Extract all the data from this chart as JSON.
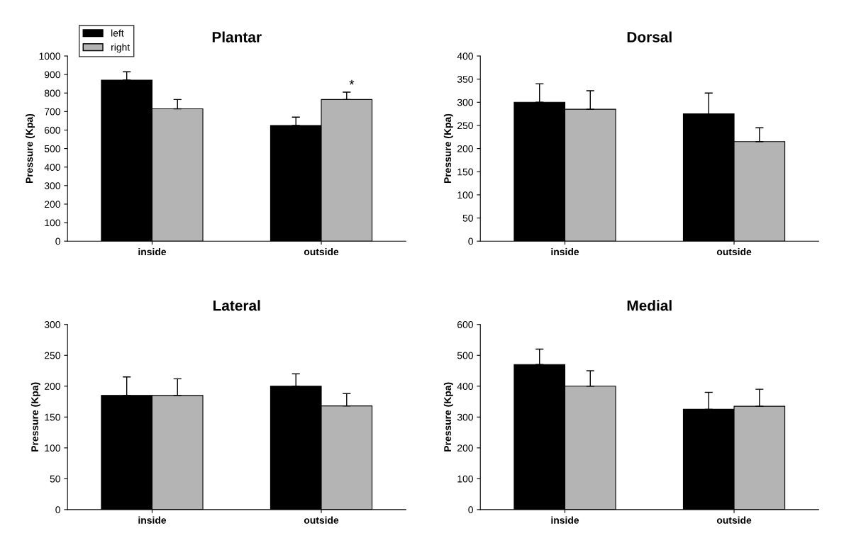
{
  "chart_data": [
    {
      "type": "bar",
      "title": "Plantar",
      "ylabel": "Pressure (Kpa)",
      "categories": [
        "inside",
        "outside"
      ],
      "ylim": [
        0,
        1000
      ],
      "yticks": [
        0,
        100,
        200,
        300,
        400,
        500,
        600,
        700,
        800,
        900,
        1000
      ],
      "grid": false,
      "legend": "top left",
      "series": [
        {
          "name": "left",
          "color": "#000000",
          "values": [
            870,
            625
          ],
          "errors": [
            45,
            45
          ]
        },
        {
          "name": "right",
          "color": "#b4b4b4",
          "values": [
            715,
            765
          ],
          "errors": [
            50,
            40
          ]
        }
      ],
      "annotations": [
        "*"
      ]
    },
    {
      "type": "bar",
      "title": "Dorsal",
      "ylabel": "Pressure (Kpa)",
      "categories": [
        "inside",
        "outside"
      ],
      "ylim": [
        0,
        400
      ],
      "yticks": [
        0,
        50,
        100,
        150,
        200,
        250,
        300,
        350,
        400
      ],
      "grid": false,
      "series": [
        {
          "color": "#000000",
          "values": [
            300,
            275
          ],
          "errors": [
            40,
            45
          ]
        },
        {
          "color": "#b4b4b4",
          "values": [
            285,
            215
          ],
          "errors": [
            40,
            30
          ]
        }
      ]
    },
    {
      "type": "bar",
      "title": "Lateral",
      "ylabel": "Pressure (Kpa)",
      "categories": [
        "inside",
        "outside"
      ],
      "ylim": [
        0,
        300
      ],
      "yticks": [
        0,
        50,
        100,
        150,
        200,
        250,
        300
      ],
      "grid": false,
      "series": [
        {
          "color": "#000000",
          "values": [
            185,
            200
          ],
          "errors": [
            30,
            20
          ]
        },
        {
          "color": "#b4b4b4",
          "values": [
            185,
            168
          ],
          "errors": [
            27,
            20
          ]
        }
      ]
    },
    {
      "type": "bar",
      "title": "Medial",
      "ylabel": "Pressure (Kpa)",
      "categories": [
        "inside",
        "outside"
      ],
      "ylim": [
        0,
        600
      ],
      "yticks": [
        0,
        100,
        200,
        300,
        400,
        500,
        600
      ],
      "grid": false,
      "series": [
        {
          "color": "#000000",
          "values": [
            470,
            325
          ],
          "errors": [
            50,
            55
          ]
        },
        {
          "color": "#b4b4b4",
          "values": [
            400,
            335
          ],
          "errors": [
            50,
            55
          ]
        }
      ]
    }
  ]
}
